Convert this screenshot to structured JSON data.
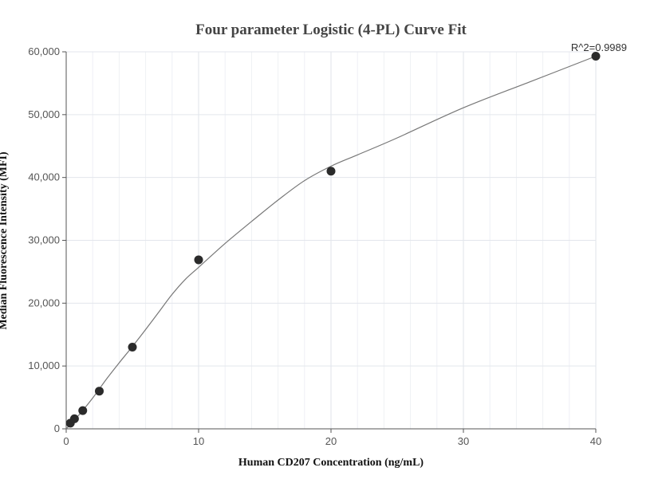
{
  "chart_data": {
    "type": "scatter",
    "title": "Four parameter Logistic (4-PL) Curve Fit",
    "xlabel": "Human CD207 Concentration (ng/mL)",
    "ylabel": "Median Fluorescence Intensity (MFI)",
    "xlim": [
      0,
      40
    ],
    "ylim": [
      0,
      60000
    ],
    "x_ticks": [
      0,
      10,
      20,
      30,
      40
    ],
    "x_tick_labels": [
      "0",
      "10",
      "20",
      "30",
      "40"
    ],
    "y_ticks": [
      0,
      10000,
      20000,
      30000,
      40000,
      50000,
      60000
    ],
    "y_tick_labels": [
      "0",
      "10,000",
      "20,000",
      "30,000",
      "40,000",
      "50,000",
      "60,000"
    ],
    "grid": true,
    "annotation": "R^2=0.9989",
    "points": {
      "x": [
        0.3125,
        0.625,
        1.25,
        2.5,
        5,
        10,
        20,
        40
      ],
      "y": [
        900,
        1600,
        2900,
        6000,
        13000,
        26900,
        41000,
        59300
      ]
    },
    "fit_curve": {
      "x": [
        0,
        0.5,
        1,
        2,
        3,
        4,
        5,
        6,
        7,
        8,
        9,
        10,
        12,
        14,
        16,
        18,
        20,
        22,
        25,
        30,
        35,
        40
      ],
      "y": [
        0,
        1100,
        2300,
        4900,
        7800,
        10500,
        13100,
        15800,
        18600,
        21400,
        23800,
        25700,
        29500,
        33000,
        36400,
        39500,
        41800,
        43600,
        46300,
        51100,
        55200,
        59300
      ]
    },
    "colors": {
      "points": "#2b2b2b",
      "curve": "#777777",
      "grid": "#e6e9ef",
      "axis": "#555555"
    }
  }
}
